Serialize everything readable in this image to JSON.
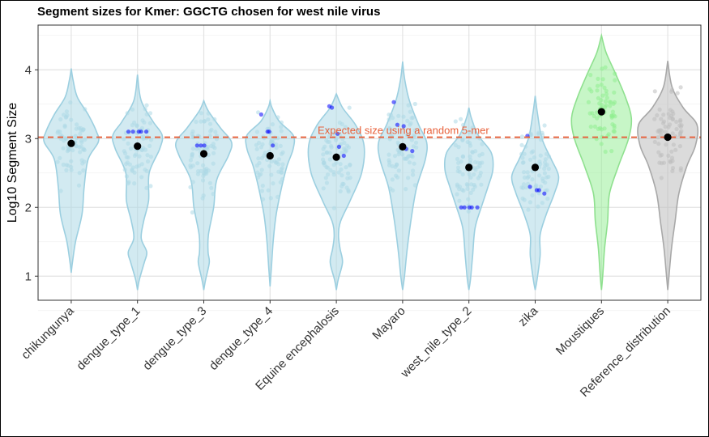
{
  "chart_data": {
    "type": "violin",
    "title": "Segment sizes for Kmer: GGCTG chosen for west nile virus",
    "xlabel": "",
    "ylabel": "Log10 Segment Size",
    "ylim": [
      0.65,
      4.65
    ],
    "yticks": [
      1,
      2,
      3,
      4
    ],
    "grid": true,
    "reference_line": {
      "y": 3.02,
      "label": "Expected size using a random 5-mer",
      "color": "#e8603a"
    },
    "categories": [
      "chikungunya",
      "dengue_type_1",
      "dengue_type_3",
      "dengue_type_4",
      "Equine encephalosis",
      "Mayaro",
      "west_nile_type_2",
      "zika",
      "Moustiques",
      "Reference_distribution"
    ],
    "colors": {
      "default": "#add8e6",
      "Moustiques": "#90ee90",
      "Reference_distribution": "#bebebe",
      "mean_point": "#000000",
      "highlight_point": "#0000ff"
    },
    "means": [
      2.93,
      2.89,
      2.78,
      2.75,
      2.73,
      2.88,
      2.58,
      2.58,
      3.39,
      3.02
    ],
    "ranges": [
      [
        1.05,
        4.02
      ],
      [
        0.8,
        3.93
      ],
      [
        0.8,
        3.55
      ],
      [
        0.85,
        3.55
      ],
      [
        0.8,
        3.65
      ],
      [
        0.8,
        4.12
      ],
      [
        0.8,
        3.45
      ],
      [
        0.8,
        3.62
      ],
      [
        0.8,
        4.5
      ],
      [
        0.8,
        4.13
      ]
    ],
    "highlight_points": [
      [],
      [
        3.1,
        3.1,
        3.1,
        3.1,
        3.1
      ],
      [
        2.9,
        2.9,
        2.9
      ],
      [
        3.35,
        3.1,
        3.1,
        2.9
      ],
      [
        3.47,
        3.45,
        3.07,
        2.88,
        2.75
      ],
      [
        3.53,
        3.2,
        3.18,
        2.85,
        2.82
      ],
      [
        2.0,
        2.0,
        2.0,
        2.0,
        2.0
      ],
      [
        3.04,
        2.3,
        2.25,
        2.25,
        2.2
      ],
      [],
      []
    ]
  }
}
